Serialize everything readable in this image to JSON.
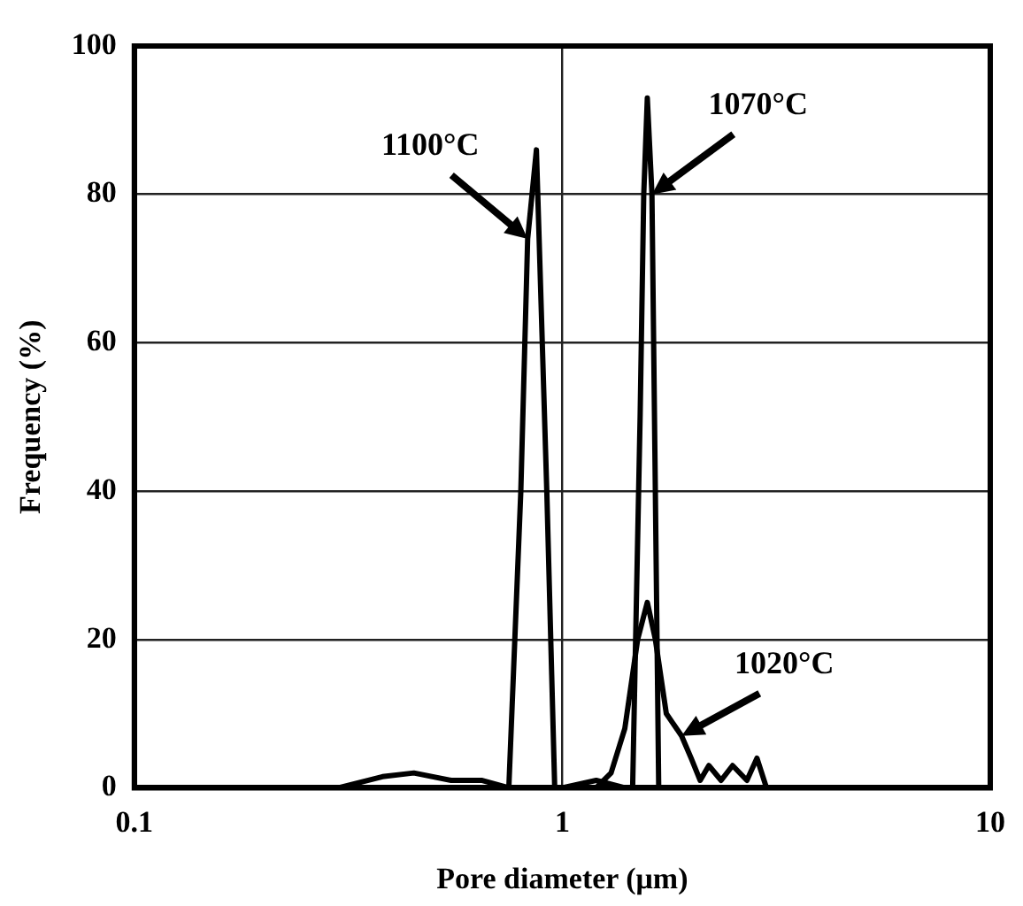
{
  "chart_data": {
    "type": "line",
    "xlabel": "Pore diameter (μm)",
    "ylabel": "Frequency (%)",
    "log": "x",
    "xlim": [
      0.1,
      10
    ],
    "xticks": [
      0.1,
      1,
      10
    ],
    "ylim": [
      0,
      100
    ],
    "yticks": [
      0,
      20,
      40,
      60,
      80,
      100
    ],
    "grid": true,
    "legend": false,
    "marker": "none",
    "line_style": "solid",
    "annotations": [
      {
        "text": "1100°C",
        "x": 0.83,
        "y": 74
      },
      {
        "text": "1070°C",
        "x": 1.62,
        "y": 80
      },
      {
        "text": "1020°C",
        "x": 1.9,
        "y": 7
      }
    ],
    "series": [
      {
        "color": "#000000",
        "x": [
          0.1,
          0.3,
          0.38,
          0.45,
          0.55,
          0.65,
          0.75,
          0.8,
          0.83,
          0.87,
          0.92,
          0.96,
          10
        ],
        "values": [
          0,
          0,
          1.5,
          2,
          1,
          1,
          0,
          40,
          74,
          86,
          40,
          0,
          0
        ]
      },
      {
        "color": "#000000",
        "x": [
          0.1,
          1,
          1.2,
          1.4,
          1.46,
          1.52,
          1.55,
          1.58,
          1.62,
          1.68,
          10
        ],
        "values": [
          0,
          0,
          1,
          0,
          0,
          50,
          80,
          93,
          80,
          0,
          0
        ]
      },
      {
        "color": "#000000",
        "x": [
          0.1,
          1.2,
          1.3,
          1.4,
          1.5,
          1.58,
          1.65,
          1.75,
          1.9,
          2,
          2.1,
          2.2,
          2.35,
          2.5,
          2.7,
          2.85,
          3,
          10
        ],
        "values": [
          0,
          0,
          2,
          8,
          20,
          25,
          20,
          10,
          7,
          4,
          1,
          3,
          1,
          3,
          1,
          4,
          0,
          0
        ]
      }
    ]
  }
}
